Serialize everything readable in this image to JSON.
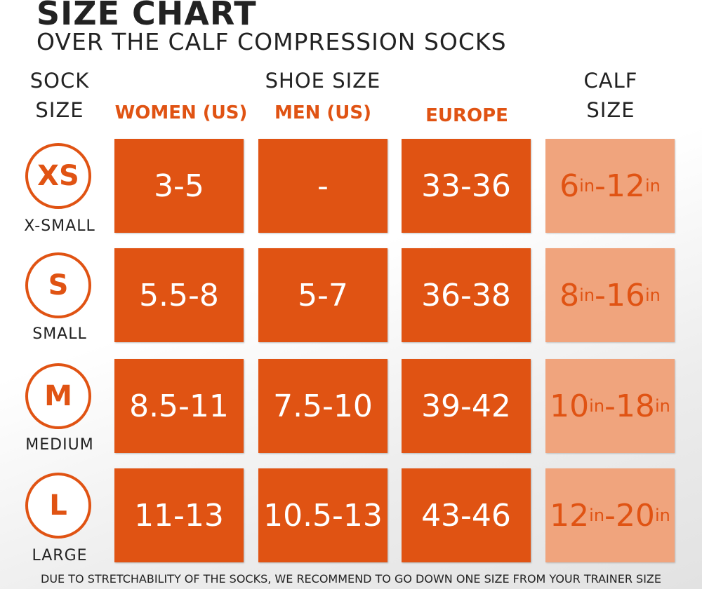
{
  "title": "SIZE CHART",
  "subtitle": "OVER THE CALF COMPRESSION SOCKS",
  "headers": {
    "sock_size_line1": "SOCK",
    "sock_size_line2": "SIZE",
    "shoe_size": "SHOE SIZE",
    "women": "WOMEN (US)",
    "men": "MEN (US)",
    "europe": "EUROPE",
    "calf_line1": "CALF",
    "calf_line2": "SIZE"
  },
  "accent_color": "#e05313",
  "calf_bg_color": "#f0a47d",
  "rows": [
    {
      "code": "XS",
      "name": "X-SMALL",
      "women": "3-5",
      "men": "-",
      "europe": "33-36",
      "calf_min": "6",
      "calf_max": "12",
      "unit": "in"
    },
    {
      "code": "S",
      "name": "SMALL",
      "women": "5.5-8",
      "men": "5-7",
      "europe": "36-38",
      "calf_min": "8",
      "calf_max": "16",
      "unit": "in"
    },
    {
      "code": "M",
      "name": "MEDIUM",
      "women": "8.5-11",
      "men": "7.5-10",
      "europe": "39-42",
      "calf_min": "10",
      "calf_max": "18",
      "unit": "in"
    },
    {
      "code": "L",
      "name": "LARGE",
      "women": "11-13",
      "men": "10.5-13",
      "europe": "43-46",
      "calf_min": "12",
      "calf_max": "20",
      "unit": "in"
    }
  ],
  "footer": "DUE TO STRETCHABILITY OF THE SOCKS, WE RECOMMEND TO GO DOWN ONE SIZE FROM YOUR TRAINER SIZE"
}
